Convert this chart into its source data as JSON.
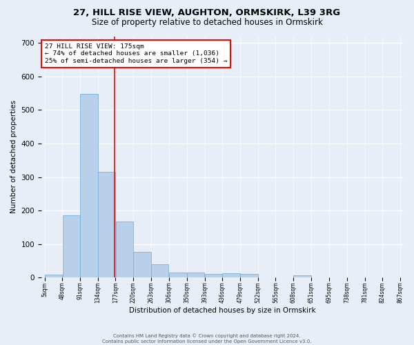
{
  "title1": "27, HILL RISE VIEW, AUGHTON, ORMSKIRK, L39 3RG",
  "title2": "Size of property relative to detached houses in Ormskirk",
  "xlabel": "Distribution of detached houses by size in Ormskirk",
  "ylabel": "Number of detached properties",
  "bar_edges": [
    5,
    48,
    91,
    134,
    177,
    220,
    263,
    306,
    350,
    393,
    436,
    479,
    522,
    565,
    608,
    651,
    695,
    738,
    781,
    824,
    867
  ],
  "bar_heights": [
    8,
    185,
    548,
    315,
    168,
    76,
    40,
    16,
    16,
    10,
    12,
    11,
    0,
    0,
    7,
    0,
    0,
    0,
    0,
    0
  ],
  "bar_color": "#b8d0ea",
  "bar_edgecolor": "#6aaad4",
  "property_line_x": 175,
  "annotation_text": "27 HILL RISE VIEW: 175sqm\n← 74% of detached houses are smaller (1,036)\n25% of semi-detached houses are larger (354) →",
  "annotation_box_color": "white",
  "annotation_border_color": "red",
  "vline_color": "red",
  "ylim": [
    0,
    720
  ],
  "yticks": [
    0,
    100,
    200,
    300,
    400,
    500,
    600,
    700
  ],
  "footer_text": "Contains HM Land Registry data © Crown copyright and database right 2024.\nContains public sector information licensed under the Open Government Licence v3.0.",
  "bg_color": "#e8eef8",
  "plot_bg_color": "#e8eef8",
  "grid_color": "white",
  "title1_fontsize": 9.5,
  "title2_fontsize": 8.5,
  "tick_labels": [
    "5sqm",
    "48sqm",
    "91sqm",
    "134sqm",
    "177sqm",
    "220sqm",
    "263sqm",
    "306sqm",
    "350sqm",
    "393sqm",
    "436sqm",
    "479sqm",
    "522sqm",
    "565sqm",
    "608sqm",
    "651sqm",
    "695sqm",
    "738sqm",
    "781sqm",
    "824sqm",
    "867sqm"
  ]
}
